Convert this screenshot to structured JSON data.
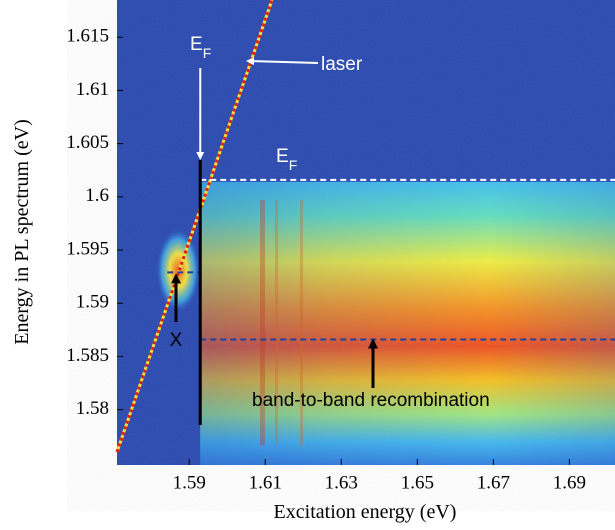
{
  "chart_data": {
    "type": "heatmap",
    "xlabel": "Excitation energy (eV)",
    "ylabel": "Energy in PL spectrum (eV)",
    "xlim": [
      1.571,
      1.702
    ],
    "ylim": [
      1.5748,
      1.6185
    ],
    "xticks": [
      1.59,
      1.61,
      1.63,
      1.65,
      1.67,
      1.69
    ],
    "yticks": [
      1.58,
      1.585,
      1.59,
      1.595,
      1.6,
      1.605,
      1.61,
      1.615
    ],
    "absorption_edge": 1.5929,
    "fermi_level": 1.6016,
    "exciton_level": 1.5929,
    "band_level": 1.5866,
    "annotations": {
      "laser": "laser",
      "fermi_labels": [
        {
          "text": "E",
          "sub": "F"
        },
        {
          "text": "E",
          "sub": "F"
        }
      ],
      "exciton": "X",
      "band": "band-to-band recombination"
    }
  }
}
